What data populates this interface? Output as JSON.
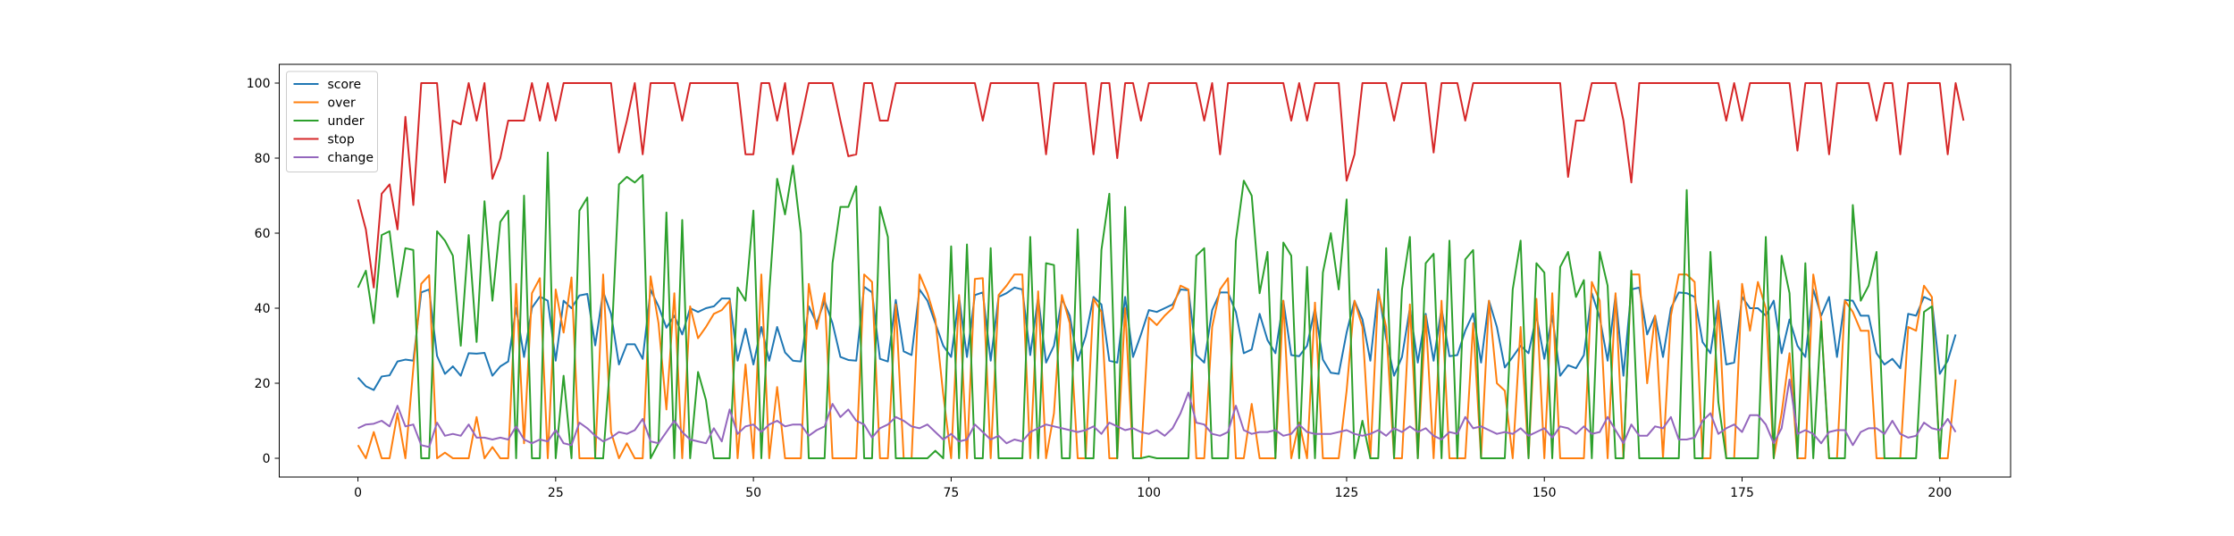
{
  "chart_data": {
    "type": "line",
    "xlim": [
      -9.95,
      208.95
    ],
    "ylim": [
      -5,
      105
    ],
    "xticks": [
      0,
      25,
      50,
      75,
      100,
      125,
      150,
      175,
      200
    ],
    "yticks": [
      0,
      20,
      40,
      60,
      80,
      100
    ],
    "grid": false,
    "legend_position": "upper-left",
    "x_range": [
      0,
      199
    ],
    "series": [
      {
        "name": "score",
        "color": "#1f77b4",
        "values": [
          21.5,
          19.2,
          18.2,
          21.8,
          22.1,
          25.8,
          26.3,
          26.0,
          44.2,
          45.0,
          27.3,
          22.5,
          24.5,
          22.0,
          28.0,
          27.9,
          28.1,
          22.0,
          24.5,
          25.8,
          40.1,
          27.0,
          40.1,
          43.1,
          42.0,
          26.0,
          42.0,
          40.0,
          43.4,
          43.8,
          30.1,
          44.4,
          38.5,
          25.0,
          30.4,
          30.4,
          26.5,
          44.9,
          40.5,
          34.8,
          38.0,
          33.0,
          40.0,
          39.0,
          40.0,
          40.5,
          42.6,
          42.6,
          26.0,
          34.5,
          25.0,
          35.0,
          26.0,
          35.0,
          28.2,
          26.0,
          25.8,
          40.5,
          36.0,
          42.0,
          36.0,
          27.0,
          26.2,
          26.0,
          45.7,
          44.2,
          26.5,
          25.8,
          42.2,
          28.5,
          27.5,
          45.0,
          42.0,
          36.0,
          30.0,
          27.0,
          43.0,
          27.0,
          43.5,
          44.2,
          26.0,
          43.0,
          44.0,
          45.5,
          45.0,
          27.5,
          43.0,
          25.5,
          30.0,
          42.5,
          38.0,
          26.0,
          32.5,
          43.0,
          41.0,
          26.0,
          25.5,
          43.0,
          27.0,
          33.0,
          39.5,
          39.0,
          40.0,
          41.0,
          45.0,
          44.8,
          27.5,
          25.5,
          39.5,
          44.2,
          44.2,
          39.0,
          28.0,
          29.0,
          38.5,
          31.5,
          28.0,
          42.0,
          27.5,
          27.2,
          30.0,
          40.0,
          26.3,
          22.8,
          22.5,
          33.5,
          42.0,
          37.0,
          26.0,
          45.0,
          32.0,
          22.0,
          27.0,
          40.0,
          25.5,
          38.5,
          26.0,
          40.0,
          27.2,
          27.5,
          34.0,
          38.6,
          25.5,
          42.0,
          35.0,
          24.2,
          27.0,
          30.0,
          28.0,
          38.0,
          26.5,
          38.0,
          22.0,
          24.8,
          24.0,
          27.5,
          44.0,
          37.5,
          26.0,
          43.5,
          22.0,
          45.0,
          45.5,
          33.0,
          38.0,
          27.0,
          40.0,
          44.2,
          44.0,
          43.0,
          31.0,
          28.0,
          42.0,
          25.0,
          25.5,
          43.0,
          40.0,
          40.0,
          38.0,
          42.0,
          28.0,
          37.0,
          30.0,
          27.0,
          45.0,
          38.0,
          43.0,
          27.0,
          42.2,
          42.0,
          38.0,
          38.0,
          28.0,
          25.0,
          26.5,
          24.0,
          38.5,
          38.0,
          43.0,
          42.0,
          22.5,
          26.0,
          33.0
        ]
      },
      {
        "name": "over",
        "color": "#ff7f0e",
        "values": [
          3.5,
          0.0,
          7.0,
          0.0,
          0.0,
          12.0,
          0.0,
          24.0,
          46.5,
          48.8,
          0.0,
          1.5,
          0.0,
          0.0,
          0.0,
          11.0,
          0.0,
          3.0,
          0.0,
          0.0,
          46.5,
          4.0,
          44.0,
          48.0,
          0.0,
          45.0,
          33.5,
          48.2,
          0.0,
          0.0,
          0.0,
          49.0,
          7.0,
          0.0,
          4.0,
          0.0,
          0.0,
          48.5,
          36.0,
          13.0,
          44.0,
          0.0,
          40.5,
          32.0,
          35.0,
          38.5,
          39.5,
          42.0,
          0.0,
          25.0,
          0.0,
          49.0,
          0.0,
          19.0,
          0.0,
          0.0,
          0.0,
          46.5,
          34.5,
          44.0,
          0.0,
          0.0,
          0.0,
          0.0,
          49.0,
          47.0,
          0.0,
          0.0,
          41.0,
          0.0,
          0.0,
          49.0,
          44.0,
          37.0,
          17.0,
          0.0,
          43.5,
          0.0,
          47.8,
          48.0,
          0.0,
          43.5,
          46.0,
          49.0,
          49.0,
          0.0,
          44.5,
          0.0,
          12.0,
          43.5,
          36.0,
          0.0,
          0.0,
          42.5,
          39.0,
          0.0,
          0.0,
          40.0,
          0.0,
          0.0,
          37.5,
          35.5,
          38.0,
          40.0,
          46.0,
          45.0,
          0.0,
          0.0,
          35.0,
          45.0,
          48.0,
          0.0,
          0.0,
          14.5,
          0.0,
          0.0,
          0.0,
          42.0,
          0.0,
          9.5,
          0.0,
          41.5,
          0.0,
          0.0,
          0.0,
          18.0,
          42.0,
          35.0,
          0.0,
          44.5,
          35.0,
          0.0,
          0.0,
          41.0,
          0.0,
          38.0,
          0.0,
          42.0,
          0.0,
          0.0,
          0.0,
          36.0,
          0.0,
          42.0,
          20.0,
          18.0,
          0.0,
          35.0,
          0.0,
          42.5,
          0.0,
          44.0,
          0.0,
          0.0,
          0.0,
          0.0,
          47.0,
          42.0,
          0.0,
          44.0,
          0.0,
          49.0,
          49.0,
          20.0,
          38.0,
          0.0,
          38.0,
          49.0,
          49.0,
          47.0,
          0.0,
          0.0,
          42.0,
          0.0,
          0.0,
          46.5,
          34.0,
          47.0,
          40.0,
          0.0,
          12.0,
          28.0,
          0.0,
          0.0,
          49.0,
          37.0,
          0.0,
          0.0,
          42.0,
          39.0,
          34.0,
          34.0,
          0.0,
          0.0,
          0.0,
          0.0,
          35.0,
          34.0,
          46.0,
          43.0,
          0.0,
          0.0,
          21.0
        ]
      },
      {
        "name": "under",
        "color": "#2ca02c",
        "values": [
          45.5,
          50.0,
          36.0,
          59.5,
          60.5,
          43.0,
          56.0,
          55.5,
          0.0,
          0.0,
          60.5,
          58.0,
          54.0,
          30.0,
          59.5,
          31.0,
          68.5,
          42.0,
          63.0,
          66.0,
          0.0,
          70.0,
          0.0,
          0.0,
          81.5,
          0.0,
          22.0,
          0.0,
          66.0,
          69.5,
          0.0,
          0.0,
          28.5,
          73.0,
          75.0,
          73.5,
          75.5,
          0.0,
          4.0,
          65.5,
          0.0,
          63.5,
          0.0,
          23.0,
          15.5,
          0.0,
          0.0,
          0.0,
          45.5,
          42.0,
          66.0,
          0.0,
          44.0,
          74.5,
          65.0,
          78.0,
          60.0,
          0.0,
          0.0,
          0.0,
          52.0,
          67.0,
          67.0,
          72.5,
          0.0,
          0.0,
          67.0,
          59.0,
          0.0,
          0.0,
          0.0,
          0.0,
          0.0,
          2.0,
          0.0,
          56.5,
          0.0,
          57.0,
          0.0,
          0.0,
          56.0,
          0.0,
          0.0,
          0.0,
          0.0,
          59.0,
          0.0,
          52.0,
          51.5,
          0.0,
          0.0,
          61.0,
          0.0,
          0.0,
          55.5,
          70.5,
          0.0,
          67.0,
          0.0,
          0.0,
          0.5,
          0.0,
          0.0,
          0.0,
          0.0,
          0.0,
          54.0,
          56.0,
          0.0,
          0.0,
          0.0,
          58.0,
          74.0,
          70.0,
          44.0,
          55.0,
          0.0,
          57.5,
          54.0,
          0.0,
          51.0,
          0.0,
          49.5,
          60.0,
          45.0,
          69.0,
          0.0,
          10.0,
          0.0,
          0.0,
          56.0,
          0.0,
          45.0,
          59.0,
          0.0,
          52.0,
          54.5,
          0.0,
          58.0,
          0.0,
          53.0,
          55.5,
          0.0,
          0.0,
          0.0,
          0.0,
          45.0,
          58.0,
          0.0,
          52.0,
          49.5,
          0.0,
          51.0,
          55.0,
          43.0,
          47.5,
          0.0,
          55.0,
          46.0,
          0.0,
          0.0,
          50.0,
          0.0,
          0.0,
          0.0,
          0.0,
          0.0,
          0.0,
          71.5,
          0.0,
          0.0,
          55.0,
          15.0,
          0.0,
          0.0,
          0.0,
          0.0,
          0.0,
          59.0,
          0.0,
          54.0,
          44.0,
          0.0,
          52.0,
          0.0,
          36.5,
          0.0,
          0.0,
          0.0,
          67.5,
          42.0,
          46.0,
          55.0,
          0.0,
          0.0,
          0.0,
          0.0,
          0.0,
          39.0,
          40.5,
          0.0,
          33.0
        ]
      },
      {
        "name": "stop",
        "color": "#d62728",
        "values": [
          69.0,
          61.0,
          45.5,
          70.5,
          73.0,
          61.0,
          91.0,
          67.5,
          100.0,
          100.0,
          100.0,
          73.5,
          90.0,
          89.0,
          100.0,
          90.0,
          100.0,
          74.5,
          80.0,
          90.0,
          90.0,
          90.0,
          100.0,
          90.0,
          100.0,
          90.0,
          100.0,
          100.0,
          100.0,
          100.0,
          100.0,
          100.0,
          100.0,
          81.5,
          90.0,
          100.0,
          81.0,
          100.0,
          100.0,
          100.0,
          100.0,
          90.0,
          100.0,
          100.0,
          100.0,
          100.0,
          100.0,
          100.0,
          100.0,
          81.0,
          81.0,
          100.0,
          100.0,
          90.0,
          100.0,
          81.0,
          90.0,
          100.0,
          100.0,
          100.0,
          100.0,
          90.0,
          80.5,
          81.0,
          100.0,
          100.0,
          90.0,
          90.0,
          100.0,
          100.0,
          100.0,
          100.0,
          100.0,
          100.0,
          100.0,
          100.0,
          100.0,
          100.0,
          100.0,
          90.0,
          100.0,
          100.0,
          100.0,
          100.0,
          100.0,
          100.0,
          100.0,
          81.0,
          100.0,
          100.0,
          100.0,
          100.0,
          100.0,
          81.0,
          100.0,
          100.0,
          80.0,
          100.0,
          100.0,
          90.0,
          100.0,
          100.0,
          100.0,
          100.0,
          100.0,
          100.0,
          100.0,
          90.0,
          100.0,
          81.0,
          100.0,
          100.0,
          100.0,
          100.0,
          100.0,
          100.0,
          100.0,
          100.0,
          90.0,
          100.0,
          90.0,
          100.0,
          100.0,
          100.0,
          100.0,
          74.0,
          81.0,
          100.0,
          100.0,
          100.0,
          100.0,
          90.0,
          100.0,
          100.0,
          100.0,
          100.0,
          81.5,
          100.0,
          100.0,
          100.0,
          90.0,
          100.0,
          100.0,
          100.0,
          100.0,
          100.0,
          100.0,
          100.0,
          100.0,
          100.0,
          100.0,
          100.0,
          100.0,
          75.0,
          90.0,
          90.0,
          100.0,
          100.0,
          100.0,
          100.0,
          90.0,
          73.5,
          100.0,
          100.0,
          100.0,
          100.0,
          100.0,
          100.0,
          100.0,
          100.0,
          100.0,
          100.0,
          100.0,
          90.0,
          100.0,
          90.0,
          100.0,
          100.0,
          100.0,
          100.0,
          100.0,
          100.0,
          82.0,
          100.0,
          100.0,
          100.0,
          81.0,
          100.0,
          100.0,
          100.0,
          100.0,
          100.0,
          90.0,
          100.0,
          100.0,
          81.0,
          100.0,
          100.0,
          100.0,
          100.0,
          100.0,
          81.0,
          100.0,
          90.0
        ]
      },
      {
        "name": "change",
        "color": "#9467bd",
        "values": [
          8.0,
          9.0,
          9.2,
          10.0,
          8.5,
          14.0,
          8.5,
          9.0,
          3.5,
          3.0,
          9.5,
          6.0,
          6.5,
          6.0,
          9.0,
          5.5,
          5.5,
          5.0,
          5.5,
          5.0,
          8.5,
          5.0,
          4.0,
          5.0,
          4.5,
          7.5,
          4.0,
          3.5,
          9.5,
          8.0,
          6.0,
          4.5,
          5.5,
          7.0,
          6.5,
          7.5,
          10.5,
          4.5,
          4.0,
          7.0,
          10.0,
          7.0,
          5.0,
          4.5,
          4.0,
          8.0,
          4.5,
          13.0,
          6.5,
          8.5,
          9.0,
          7.0,
          9.0,
          10.0,
          8.5,
          9.0,
          9.0,
          6.0,
          7.5,
          8.5,
          14.5,
          11.0,
          13.0,
          10.0,
          9.0,
          5.5,
          8.0,
          9.0,
          11.0,
          10.0,
          8.5,
          8.0,
          9.0,
          7.0,
          5.0,
          6.5,
          4.5,
          5.0,
          9.0,
          7.0,
          5.0,
          6.0,
          4.0,
          5.0,
          4.5,
          7.0,
          8.0,
          9.0,
          8.5,
          8.0,
          7.5,
          7.0,
          7.5,
          8.5,
          6.5,
          9.5,
          8.5,
          7.5,
          8.0,
          7.0,
          6.5,
          7.5,
          6.0,
          8.0,
          12.0,
          17.5,
          9.5,
          9.0,
          6.5,
          6.0,
          7.0,
          14.0,
          7.5,
          6.5,
          7.0,
          7.0,
          7.5,
          6.0,
          6.5,
          9.0,
          7.0,
          6.5,
          6.5,
          6.5,
          7.0,
          7.5,
          6.5,
          6.0,
          6.5,
          7.5,
          6.0,
          8.0,
          7.0,
          8.5,
          7.0,
          8.0,
          6.0,
          5.0,
          7.0,
          6.5,
          11.0,
          8.0,
          8.5,
          7.5,
          6.5,
          7.0,
          6.5,
          8.0,
          6.0,
          7.0,
          8.0,
          5.5,
          8.5,
          8.0,
          6.5,
          8.5,
          6.5,
          7.0,
          11.0,
          7.5,
          4.0,
          9.0,
          6.0,
          6.0,
          8.5,
          8.0,
          11.0,
          5.0,
          5.0,
          5.5,
          10.0,
          12.0,
          6.5,
          8.0,
          9.0,
          7.0,
          11.5,
          11.5,
          9.0,
          4.0,
          8.0,
          21.0,
          6.5,
          7.5,
          6.5,
          4.0,
          7.0,
          7.5,
          7.5,
          3.5,
          7.0,
          8.0,
          8.0,
          6.5,
          10.0,
          6.5,
          5.5,
          6.0,
          9.5,
          8.0,
          7.5,
          10.5,
          7.0
        ]
      }
    ]
  }
}
